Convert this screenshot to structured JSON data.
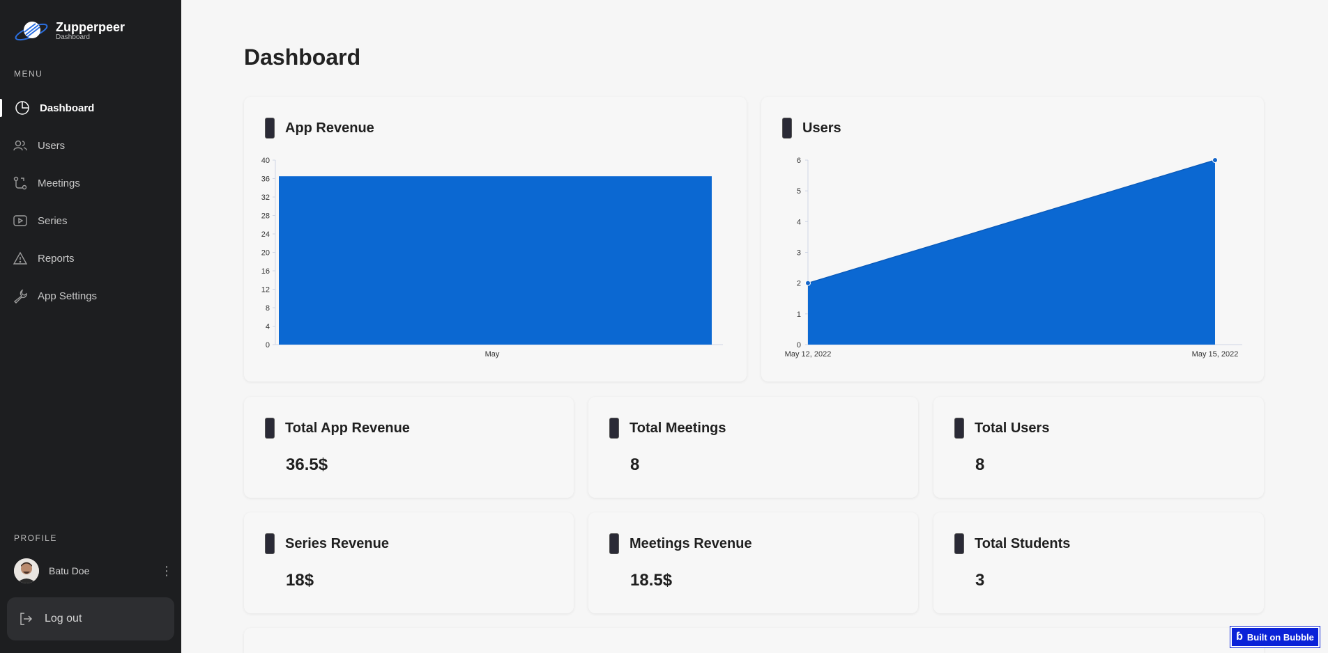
{
  "brand": {
    "name": "Zupperpeer",
    "subtitle": "Dashboard"
  },
  "sidebar": {
    "menu_label": "MENU",
    "items": [
      {
        "label": "Dashboard",
        "icon": "pie-chart-icon",
        "active": true
      },
      {
        "label": "Users",
        "icon": "users-icon",
        "active": false
      },
      {
        "label": "Meetings",
        "icon": "route-icon",
        "active": false
      },
      {
        "label": "Series",
        "icon": "video-icon",
        "active": false
      },
      {
        "label": "Reports",
        "icon": "warning-icon",
        "active": false
      },
      {
        "label": "App Settings",
        "icon": "wrench-icon",
        "active": false
      }
    ],
    "profile_label": "PROFILE",
    "profile_name": "Batu Doe",
    "logout_label": "Log out"
  },
  "main": {
    "page_title": "Dashboard",
    "stats": [
      {
        "label": "Total App Revenue",
        "value": "36.5$"
      },
      {
        "label": "Total Meetings",
        "value": "8"
      },
      {
        "label": "Total Users",
        "value": "8"
      },
      {
        "label": "Series Revenue",
        "value": "18$"
      },
      {
        "label": "Meetings Revenue",
        "value": "18.5$"
      },
      {
        "label": "Total Students",
        "value": "3"
      }
    ]
  },
  "chart_data": [
    {
      "type": "bar",
      "title": "App Revenue",
      "categories": [
        "May"
      ],
      "values": [
        36.5
      ],
      "ylim": [
        0,
        40
      ],
      "yticks": [
        0,
        4,
        8,
        12,
        16,
        20,
        24,
        28,
        32,
        36,
        40
      ],
      "color": "#0b68d2"
    },
    {
      "type": "area",
      "title": "Users",
      "x": [
        "May 12, 2022",
        "May 15, 2022"
      ],
      "values": [
        2,
        6
      ],
      "ylim": [
        0,
        6
      ],
      "yticks": [
        0,
        1,
        2,
        3,
        4,
        5,
        6
      ],
      "color": "#0b68d2"
    }
  ],
  "footer_badge": "Built on Bubble"
}
